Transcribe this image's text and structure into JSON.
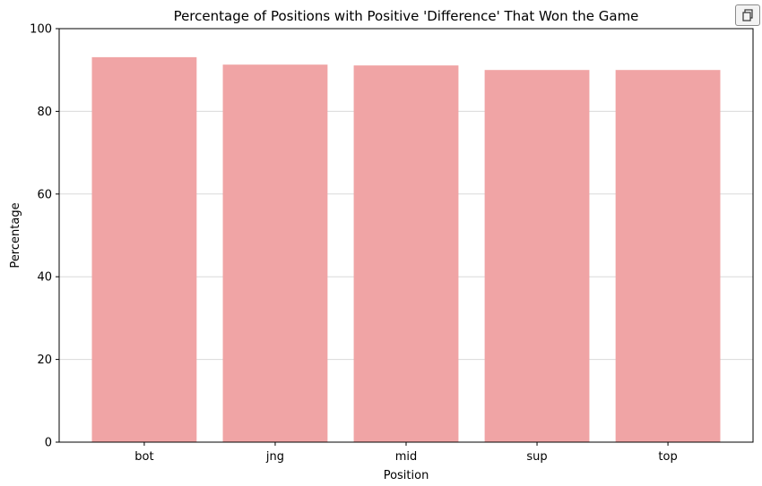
{
  "copy_button": {
    "icon": "copy-icon"
  },
  "chart_data": {
    "type": "bar",
    "title": "Percentage of Positions with Positive 'Difference' That Won the Game",
    "xlabel": "Position",
    "ylabel": "Percentage",
    "categories": [
      "bot",
      "jng",
      "mid",
      "sup",
      "top"
    ],
    "values": [
      93.1,
      91.3,
      91.1,
      90.0,
      90.0
    ],
    "ylim": [
      0,
      100
    ],
    "yticks": [
      0,
      20,
      40,
      60,
      80,
      100
    ],
    "grid": "horizontal",
    "bar_color": "#f0a4a5",
    "grid_color": "#d9d9d9"
  }
}
